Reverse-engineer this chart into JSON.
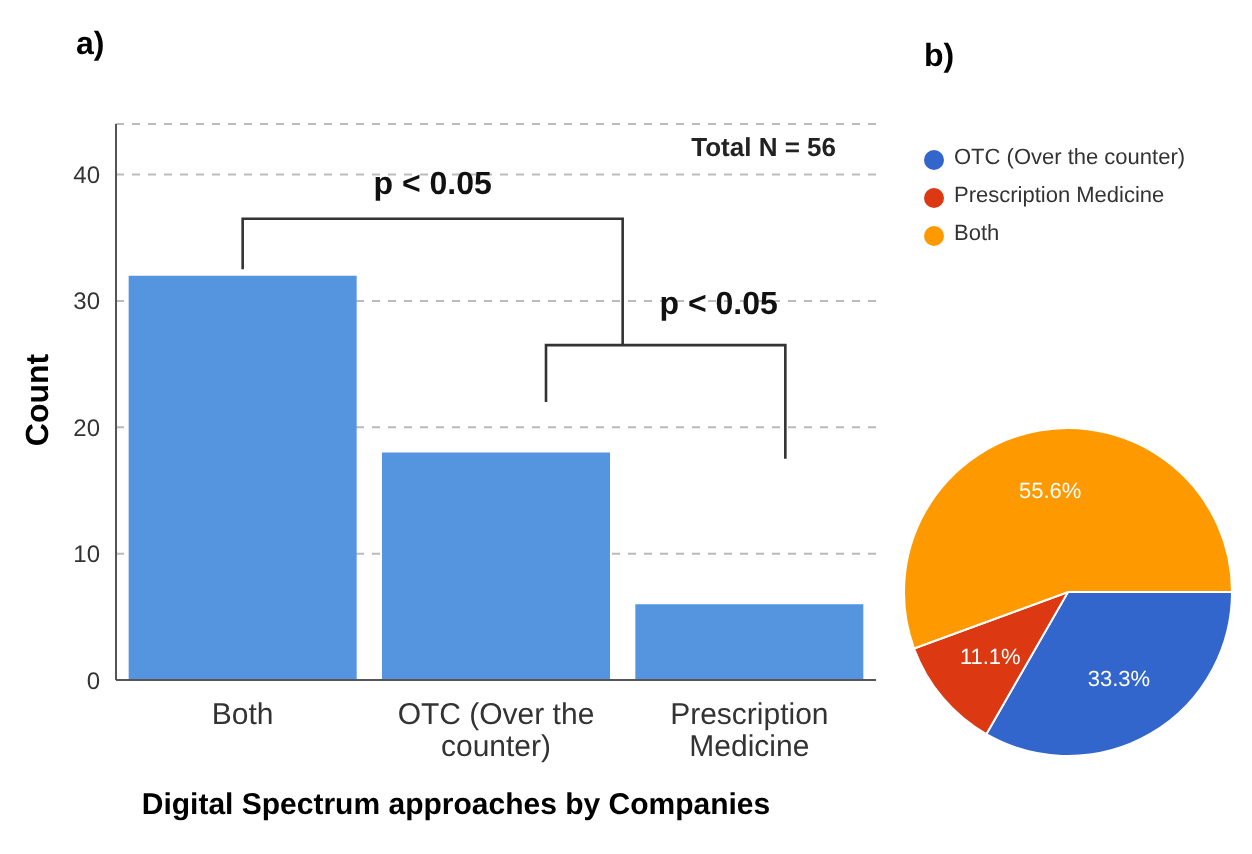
{
  "chart_data": [
    {
      "type": "bar",
      "title": "a)",
      "xlabel": "Digital Spectrum approaches by Companies",
      "ylabel": "Count",
      "categories": [
        "Both",
        "OTC (Over the counter)",
        "Prescription Medicine"
      ],
      "values": [
        32,
        18,
        6
      ],
      "color": "#5595e0",
      "ylim": [
        0,
        44
      ],
      "yticks": [
        0,
        10,
        20,
        30,
        40
      ],
      "grid": "y",
      "annotations": [
        "Total N =  56",
        "p < 0.05",
        "p < 0.05"
      ]
    },
    {
      "type": "pie",
      "title": "b)",
      "categories": [
        "OTC (Over the counter)",
        "Prescription Medicine",
        "Both"
      ],
      "values": [
        33.3,
        11.1,
        55.6
      ],
      "colors": [
        "#3366cc",
        "#dc3912",
        "#ff9900"
      ],
      "value_labels": [
        "33.3%",
        "11.1%",
        "55.6%"
      ],
      "legend": "top"
    }
  ]
}
